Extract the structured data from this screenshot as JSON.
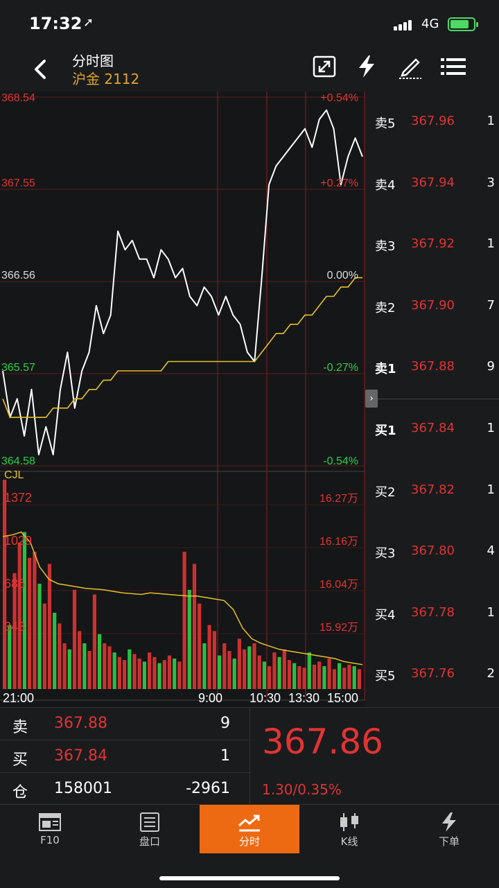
{
  "status": {
    "time": "17:32",
    "network": "4G"
  },
  "nav": {
    "title": "分时图",
    "subtitle": "沪金 2112",
    "icons": [
      "back-arrow-icon",
      "expand-icon",
      "lightning-icon",
      "draw-icon",
      "menu-icon"
    ]
  },
  "chart_data": {
    "type": "line",
    "price": {
      "y_labels_left": [
        "368.54",
        "367.55",
        "366.56",
        "365.57",
        "364.58"
      ],
      "y_labels_right": [
        "+0.54%",
        "+0.27%",
        "0.00%",
        "-0.27%",
        "-0.54%"
      ],
      "ylim": [
        364.58,
        368.54
      ],
      "series": [
        {
          "name": "price",
          "color": "#ffffff",
          "values": [
            365.6,
            365.1,
            365.3,
            364.9,
            365.4,
            364.7,
            365.0,
            364.7,
            365.4,
            365.8,
            365.2,
            365.6,
            365.8,
            366.3,
            366.0,
            366.2,
            367.1,
            366.9,
            367.0,
            366.8,
            366.8,
            366.6,
            366.9,
            366.8,
            366.6,
            366.7,
            366.4,
            366.3,
            366.5,
            366.4,
            366.2,
            366.4,
            366.2,
            366.1,
            365.8,
            365.7,
            366.6,
            367.6,
            367.8,
            367.9,
            368.0,
            368.1,
            368.2,
            368.0,
            368.3,
            368.4,
            368.2,
            367.6,
            367.9,
            368.1,
            367.9
          ]
        },
        {
          "name": "avg",
          "color": "#e6c12a",
          "values": [
            365.3,
            365.1,
            365.1,
            365.1,
            365.1,
            365.1,
            365.1,
            365.2,
            365.2,
            365.2,
            365.3,
            365.3,
            365.4,
            365.4,
            365.5,
            365.5,
            365.6,
            365.6,
            365.6,
            365.6,
            365.6,
            365.6,
            365.6,
            365.7,
            365.7,
            365.7,
            365.7,
            365.7,
            365.7,
            365.7,
            365.7,
            365.7,
            365.7,
            365.7,
            365.7,
            365.7,
            365.8,
            365.9,
            366.0,
            366.0,
            366.1,
            366.1,
            366.2,
            366.2,
            366.3,
            366.4,
            366.4,
            366.5,
            366.5,
            366.6,
            366.6
          ]
        }
      ]
    },
    "volume": {
      "label": "CJL",
      "left_labels": [
        "1372",
        "1029",
        "686",
        "343"
      ],
      "right_labels": [
        "16.27万",
        "16.16万",
        "16.04万",
        "15.92万"
      ],
      "ylim": [
        0,
        1372
      ],
      "bars": [
        1372,
        420,
        760,
        960,
        1029,
        860,
        900,
        690,
        560,
        820,
        500,
        430,
        300,
        260,
        650,
        380,
        300,
        250,
        620,
        360,
        300,
        280,
        240,
        210,
        190,
        260,
        230,
        200,
        180,
        240,
        210,
        170,
        190,
        220,
        200,
        180,
        900,
        650,
        820,
        560,
        300,
        420,
        380,
        220,
        300,
        250,
        200,
        330,
        260,
        280,
        300,
        220,
        180,
        150,
        240,
        210,
        260,
        190,
        170,
        150,
        140,
        240,
        160,
        180,
        150,
        200,
        130,
        170,
        140,
        160,
        150,
        130
      ],
      "oi_line": [
        1000,
        1010,
        1029,
        960,
        800,
        720,
        690,
        680,
        670,
        660,
        655,
        650,
        640,
        630,
        625,
        620,
        630,
        625,
        620,
        615,
        610,
        610,
        600,
        590,
        580,
        520,
        400,
        330,
        300,
        280,
        260,
        250,
        240,
        230,
        220,
        210,
        200,
        180,
        170,
        160
      ],
      "oi_color": "#e6c12a"
    },
    "x_labels": [
      "21:00",
      "9:00",
      "10:30",
      "13:30",
      "15:00"
    ]
  },
  "orderbook": {
    "asks": [
      {
        "label": "卖5",
        "price": "367.96",
        "vol": "1"
      },
      {
        "label": "卖4",
        "price": "367.94",
        "vol": "3"
      },
      {
        "label": "卖3",
        "price": "367.92",
        "vol": "1"
      },
      {
        "label": "卖2",
        "price": "367.90",
        "vol": "7"
      },
      {
        "label": "卖1",
        "price": "367.88",
        "vol": "9"
      }
    ],
    "bids": [
      {
        "label": "买1",
        "price": "367.84",
        "vol": "1"
      },
      {
        "label": "买2",
        "price": "367.82",
        "vol": "1"
      },
      {
        "label": "买3",
        "price": "367.80",
        "vol": "4"
      },
      {
        "label": "买4",
        "price": "367.78",
        "vol": "1"
      },
      {
        "label": "买5",
        "price": "367.76",
        "vol": "2"
      }
    ],
    "collapse": "›"
  },
  "summary": {
    "sell": {
      "k": "卖",
      "v": "367.88",
      "n": "9"
    },
    "buy": {
      "k": "买",
      "v": "367.84",
      "n": "1"
    },
    "oi": {
      "k": "仓",
      "v": "158001",
      "n": "-2961"
    },
    "last": "367.86",
    "change": "1.30/0.35%"
  },
  "tabs": [
    {
      "label": "F10",
      "icon": "f10-icon",
      "active": false
    },
    {
      "label": "盘口",
      "icon": "orderbook-icon",
      "active": false
    },
    {
      "label": "分时",
      "icon": "timeshare-icon",
      "active": true
    },
    {
      "label": "K线",
      "icon": "candlestick-icon",
      "active": false
    },
    {
      "label": "下单",
      "icon": "order-lightning-icon",
      "active": false
    }
  ],
  "colors": {
    "up": "#e03434",
    "down": "#2bd14a",
    "avg": "#e6c12a",
    "accent": "#ee6a12"
  }
}
